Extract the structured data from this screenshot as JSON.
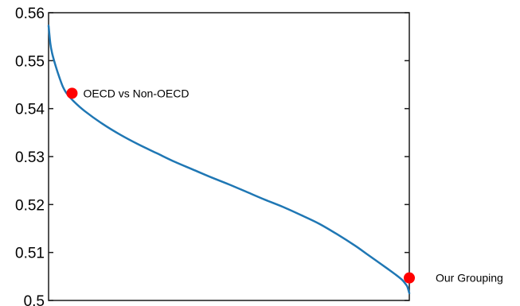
{
  "chart_data": {
    "type": "line",
    "title": "",
    "xlabel": "",
    "ylabel": "",
    "ylim": [
      0.5,
      0.56
    ],
    "yticks": [
      0.5,
      0.51,
      0.52,
      0.53,
      0.54,
      0.55,
      0.56
    ],
    "ytick_labels": [
      "0.5",
      "0.51",
      "0.52",
      "0.53",
      "0.54",
      "0.55",
      "0.56"
    ],
    "xlim": [
      0,
      1
    ],
    "xticks_shown": false,
    "grid": false,
    "box": true,
    "series": [
      {
        "color": "#1f77b4",
        "x": [
          0.0,
          0.005,
          0.01,
          0.02,
          0.03,
          0.04,
          0.05,
          0.07,
          0.1,
          0.15,
          0.2,
          0.25,
          0.3,
          0.35,
          0.4,
          0.45,
          0.5,
          0.55,
          0.6,
          0.65,
          0.7,
          0.75,
          0.8,
          0.85,
          0.88,
          0.91,
          0.94,
          0.96,
          0.98,
          0.99,
          0.995,
          1.0
        ],
        "y": [
          0.5573,
          0.5535,
          0.5515,
          0.5488,
          0.5465,
          0.5445,
          0.5432,
          0.5415,
          0.5395,
          0.5368,
          0.5345,
          0.5325,
          0.5307,
          0.5289,
          0.5273,
          0.5257,
          0.5242,
          0.5226,
          0.521,
          0.5195,
          0.5178,
          0.516,
          0.5138,
          0.5114,
          0.5098,
          0.5082,
          0.5066,
          0.5055,
          0.5043,
          0.5034,
          0.5028,
          0.5015
        ]
      }
    ],
    "annotations": [
      {
        "text": "OECD vs Non-OECD",
        "x": 0.065,
        "y": 0.5432,
        "marker_color": "#ff0000"
      },
      {
        "text": "Our Grouping",
        "x": 1.0,
        "y": 0.5047,
        "marker_color": "#ff0000"
      }
    ]
  }
}
